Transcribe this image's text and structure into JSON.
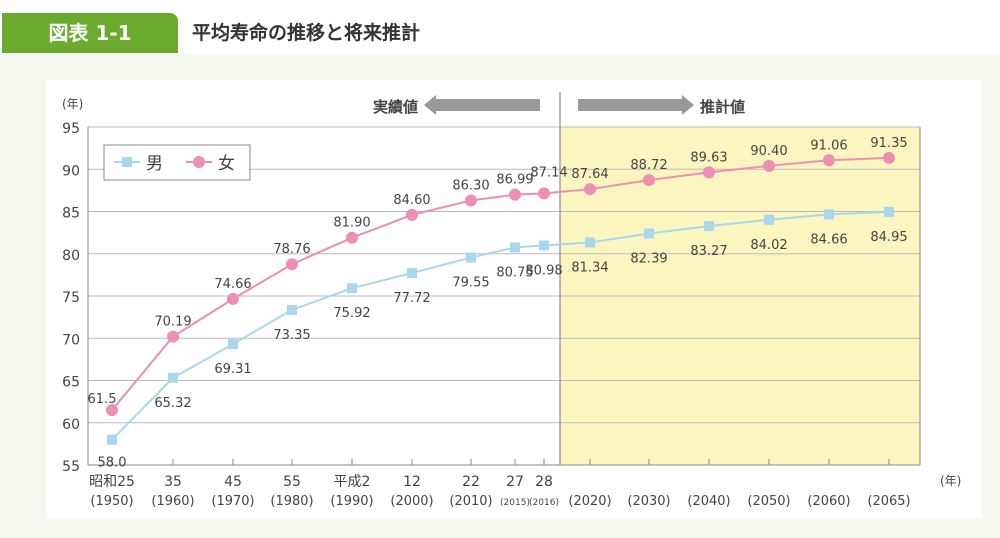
{
  "header": {
    "tag": "図表 1-1",
    "title": "平均寿命の推移と将来推計"
  },
  "chart_data": {
    "type": "line",
    "ylabel": "(年)",
    "xunit": "(年)",
    "ylim": [
      55,
      95
    ],
    "yticks": [
      55,
      60,
      65,
      70,
      75,
      80,
      85,
      90,
      95
    ],
    "grid": true,
    "legend_position": "top-left",
    "actual_label": "実績値",
    "projection_label": "推計値",
    "categories": [
      {
        "era": "昭和25",
        "year": "(1950)"
      },
      {
        "era": "35",
        "year": "(1960)"
      },
      {
        "era": "45",
        "year": "(1970)"
      },
      {
        "era": "55",
        "year": "(1980)"
      },
      {
        "era": "平成2",
        "year": "(1990)"
      },
      {
        "era": "12",
        "year": "(2000)"
      },
      {
        "era": "22",
        "year": "(2010)"
      },
      {
        "era": "27",
        "year": "(2015)"
      },
      {
        "era": "28",
        "year": "(2016)"
      },
      {
        "era": "",
        "year": "(2020)"
      },
      {
        "era": "",
        "year": "(2030)"
      },
      {
        "era": "",
        "year": "(2040)"
      },
      {
        "era": "",
        "year": "(2050)"
      },
      {
        "era": "",
        "year": "(2060)"
      },
      {
        "era": "",
        "year": "(2065)"
      }
    ],
    "series": [
      {
        "name": "男",
        "color": "#a8d8ee",
        "marker": "square",
        "values": [
          58.0,
          65.32,
          69.31,
          73.35,
          75.92,
          77.72,
          79.55,
          80.75,
          80.98,
          81.34,
          82.39,
          83.27,
          84.02,
          84.66,
          84.95
        ],
        "labels": [
          "58.0",
          "65.32",
          "69.31",
          "73.35",
          "75.92",
          "77.72",
          "79.55",
          "80.75",
          "80.98",
          "81.34",
          "82.39",
          "83.27",
          "84.02",
          "84.66",
          "84.95"
        ]
      },
      {
        "name": "女",
        "color": "#ec8fb3",
        "marker": "circle",
        "values": [
          61.5,
          70.19,
          74.66,
          78.76,
          81.9,
          84.6,
          86.3,
          86.99,
          87.14,
          87.64,
          88.72,
          89.63,
          90.4,
          91.06,
          91.35
        ],
        "labels": [
          "61.5",
          "70.19",
          "74.66",
          "78.76",
          "81.90",
          "84.60",
          "86.30",
          "86.99",
          "87.14",
          "87.64",
          "88.72",
          "89.63",
          "90.40",
          "91.06",
          "91.35"
        ]
      }
    ],
    "colors": {
      "projection_bg": "#fbf5c0",
      "arrow": "#999999",
      "grid": "#bbbbbb"
    }
  }
}
